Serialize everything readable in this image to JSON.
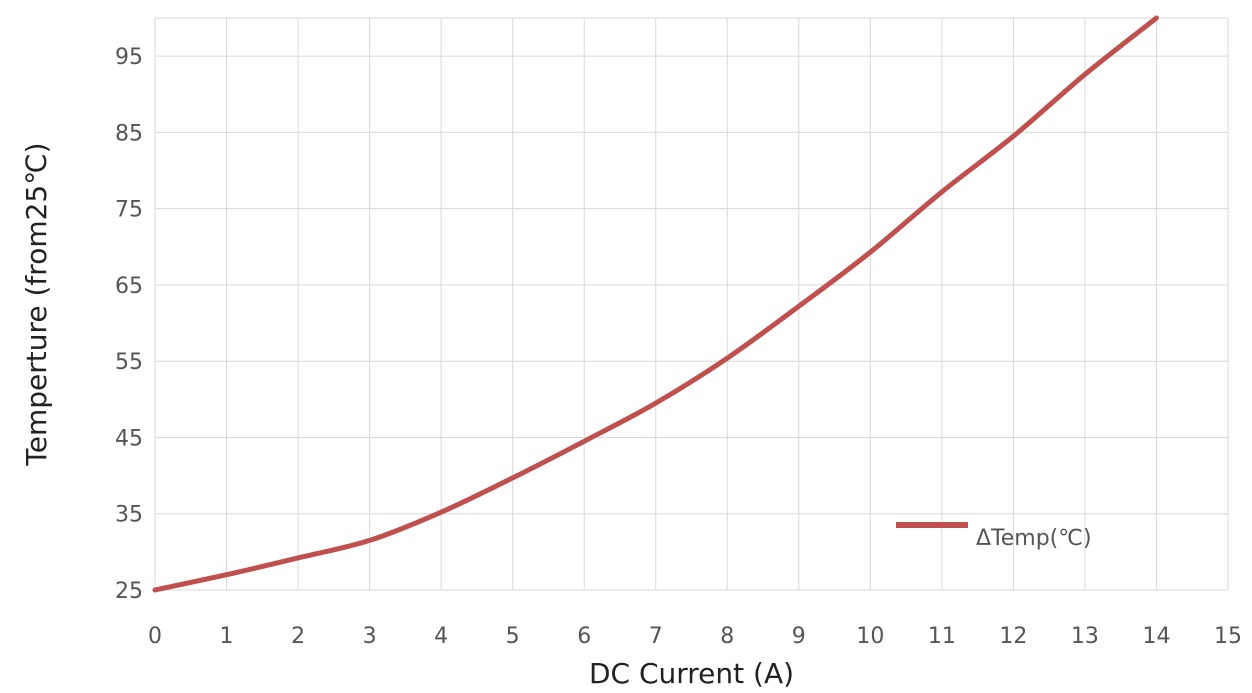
{
  "chart_data": {
    "type": "line",
    "xlabel": "DC Current (A)",
    "ylabel": "Temperture (from25℃)",
    "xlim": [
      0,
      15
    ],
    "ylim": [
      25,
      100
    ],
    "x_ticks": [
      0,
      1,
      2,
      3,
      4,
      5,
      6,
      7,
      8,
      9,
      10,
      11,
      12,
      13,
      14,
      15
    ],
    "y_ticks": [
      25,
      35,
      45,
      55,
      65,
      75,
      85,
      95
    ],
    "grid": true,
    "legend_position": "bottom-right",
    "series": [
      {
        "name": "ΔTemp(℃)",
        "color": "#c0504d",
        "x": [
          0,
          1,
          2,
          3,
          4,
          5,
          6,
          7,
          8,
          9,
          10,
          11,
          12,
          13,
          14
        ],
        "y": [
          25,
          27,
          29.2,
          31.5,
          35.2,
          39.7,
          44.5,
          49.5,
          55.4,
          62.2,
          69.3,
          77.2,
          84.5,
          92.6,
          100
        ]
      }
    ]
  }
}
